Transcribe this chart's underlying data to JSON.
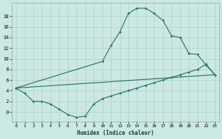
{
  "xlabel": "Humidex (Indice chaleur)",
  "bg_color": "#cce8e4",
  "grid_color": "#aacfcb",
  "line_color": "#2a7a6a",
  "xlim": [
    -0.5,
    23.5
  ],
  "ylim": [
    -1.8,
    20.5
  ],
  "xticks": [
    0,
    1,
    2,
    3,
    4,
    5,
    6,
    7,
    8,
    9,
    10,
    11,
    12,
    13,
    14,
    15,
    16,
    17,
    18,
    19,
    20,
    21,
    22,
    23
  ],
  "yticks": [
    0,
    2,
    4,
    6,
    8,
    10,
    12,
    14,
    16,
    18
  ],
  "line1_x": [
    0,
    10,
    11,
    12,
    13,
    14,
    15,
    16,
    17,
    18,
    19,
    20,
    21,
    22,
    23
  ],
  "line1_y": [
    4.5,
    9.5,
    12.5,
    15.0,
    18.5,
    19.5,
    19.5,
    18.5,
    17.2,
    14.3,
    14.0,
    11.0,
    10.8,
    8.8,
    7.0
  ],
  "line2_x": [
    0,
    23
  ],
  "line2_y": [
    4.5,
    7.0
  ],
  "line3_x": [
    0,
    1,
    2,
    3,
    4,
    5,
    6,
    7,
    8,
    9,
    10,
    11,
    12,
    13,
    14,
    15,
    16,
    17,
    18,
    19,
    20,
    21,
    22,
    23
  ],
  "line3_y": [
    4.5,
    3.5,
    2.0,
    2.0,
    1.5,
    0.5,
    -0.5,
    -1.0,
    -0.8,
    1.5,
    2.5,
    3.0,
    3.5,
    4.0,
    4.5,
    5.0,
    5.5,
    6.0,
    6.5,
    7.0,
    7.5,
    8.0,
    9.0,
    7.0
  ]
}
